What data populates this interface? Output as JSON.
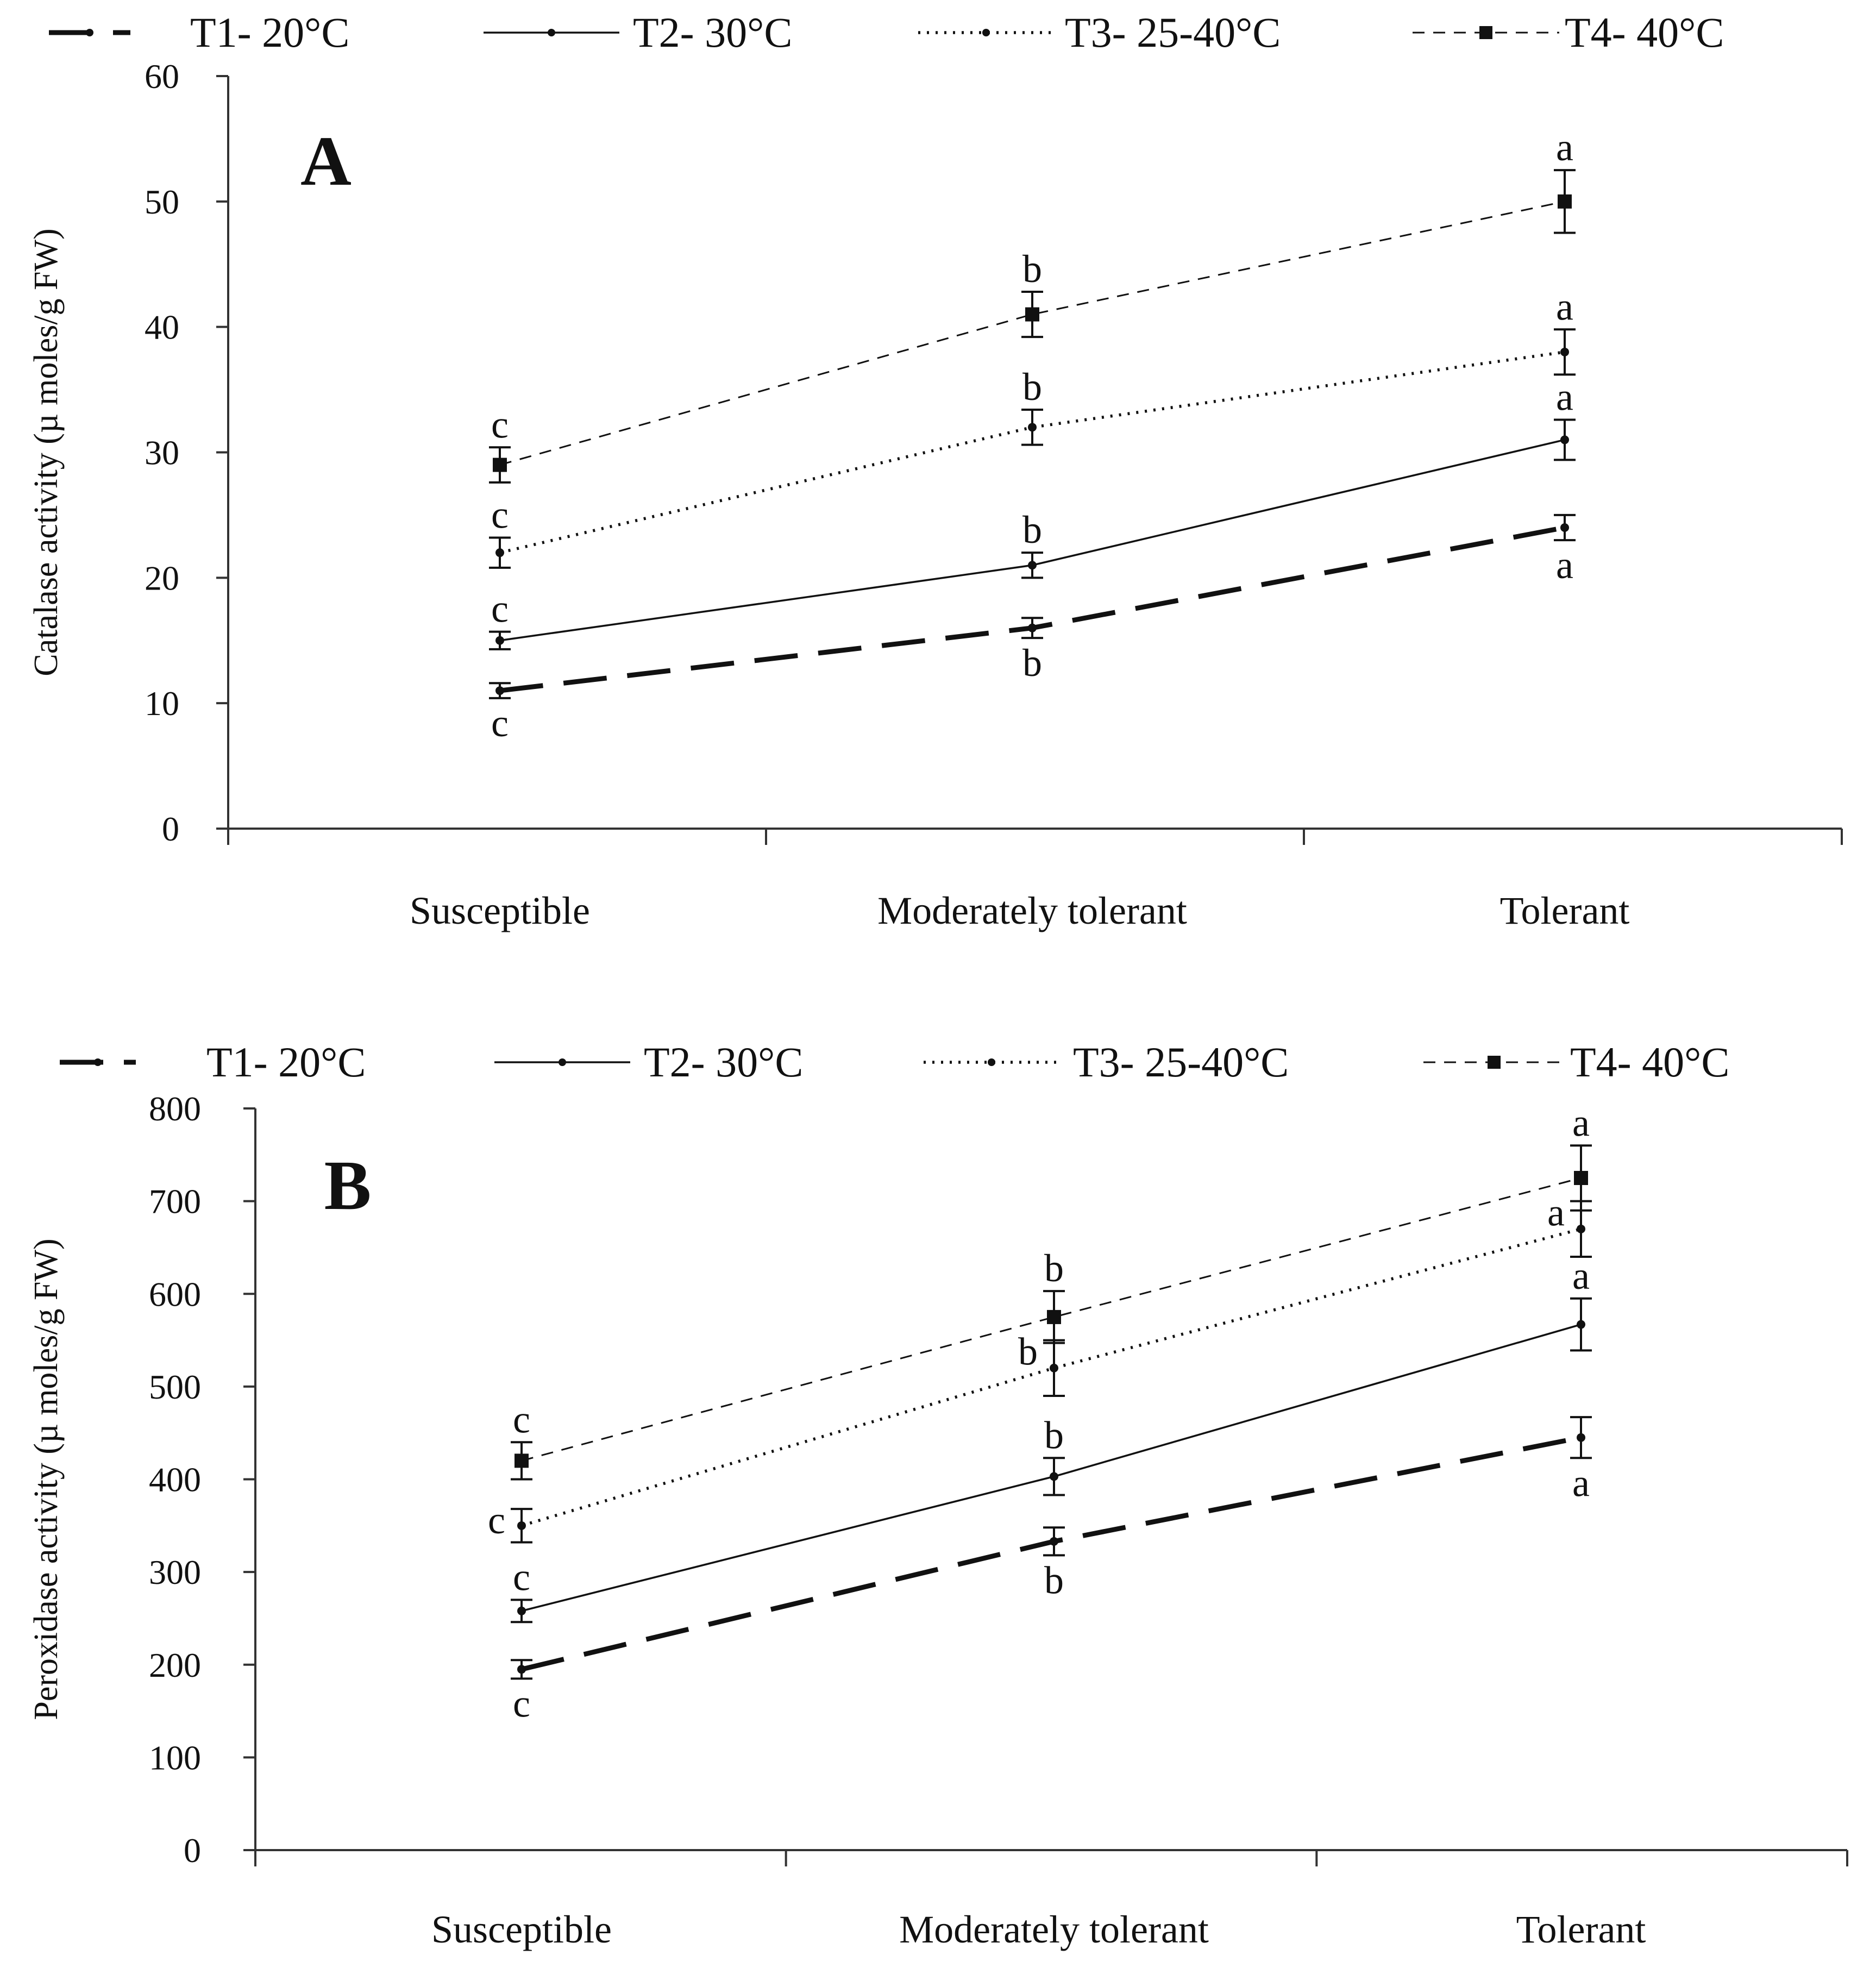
{
  "chart_data": [
    {
      "panel": "A",
      "type": "line",
      "ylabel": "Catalase activity (µ moles/g FW)",
      "xlabel": "",
      "categories": [
        "Susceptible",
        "Moderately tolerant",
        "Tolerant"
      ],
      "ylim": [
        0,
        60
      ],
      "yticks": [
        0,
        10,
        20,
        30,
        40,
        50,
        60
      ],
      "yticks_text": [
        "0",
        "10",
        "20",
        "30",
        "40",
        "50",
        "60"
      ],
      "legend_position": "top",
      "series": [
        {
          "name": "T1- 20°C",
          "style": "long-dash-bold",
          "marker": "dot",
          "values": [
            11,
            16,
            24
          ],
          "errors": [
            0.6,
            0.8,
            1.0
          ],
          "letters": [
            "c",
            "b",
            "a"
          ],
          "letter_pos": [
            "below",
            "below",
            "below"
          ]
        },
        {
          "name": "T2- 30°C",
          "style": "solid",
          "marker": "dot",
          "values": [
            15,
            21,
            31
          ],
          "errors": [
            0.7,
            1.0,
            1.6
          ],
          "letters": [
            "c",
            "b",
            "a"
          ],
          "letter_pos": [
            "above",
            "above",
            "above"
          ]
        },
        {
          "name": "T3- 25-40°C",
          "style": "dotted",
          "marker": "dot",
          "values": [
            22,
            32,
            38
          ],
          "errors": [
            1.2,
            1.4,
            1.8
          ],
          "letters": [
            "c",
            "b",
            "a"
          ],
          "letter_pos": [
            "above",
            "above",
            "above"
          ]
        },
        {
          "name": "T4- 40°C",
          "style": "dashed",
          "marker": "square",
          "values": [
            29,
            41,
            50
          ],
          "errors": [
            1.4,
            1.8,
            2.5
          ],
          "letters": [
            "c",
            "b",
            "a"
          ],
          "letter_pos": [
            "above",
            "above",
            "above"
          ]
        }
      ]
    },
    {
      "panel": "B",
      "type": "line",
      "ylabel": "Peroxidase activity (µ moles/g FW)",
      "xlabel": "",
      "categories": [
        "Susceptible",
        "Moderately tolerant",
        "Tolerant"
      ],
      "ylim": [
        0,
        800
      ],
      "yticks": [
        0,
        100,
        200,
        300,
        400,
        500,
        600,
        700,
        800
      ],
      "yticks_text": [
        "0",
        "100",
        "200",
        "300",
        "400",
        "500",
        "600",
        "700",
        "800"
      ],
      "legend_position": "top",
      "series": [
        {
          "name": "T1- 20°C",
          "style": "long-dash-bold",
          "marker": "dot",
          "values": [
            195,
            333,
            445
          ],
          "errors": [
            10,
            15,
            22
          ],
          "letters": [
            "c",
            "b",
            "a"
          ],
          "letter_pos": [
            "below",
            "below",
            "below"
          ]
        },
        {
          "name": "T2- 30°C",
          "style": "solid",
          "marker": "dot",
          "values": [
            258,
            403,
            567
          ],
          "errors": [
            12,
            20,
            28
          ],
          "letters": [
            "c",
            "b",
            "a"
          ],
          "letter_pos": [
            "above",
            "above",
            "above"
          ]
        },
        {
          "name": "T3- 25-40°C",
          "style": "dotted",
          "marker": "dot",
          "values": [
            350,
            520,
            670
          ],
          "errors": [
            18,
            30,
            30
          ],
          "letters": [
            "c",
            "b",
            "a"
          ],
          "letter_pos": [
            "left",
            "left",
            "left"
          ]
        },
        {
          "name": "T4- 40°C",
          "style": "dashed",
          "marker": "square",
          "values": [
            420,
            575,
            725
          ],
          "errors": [
            20,
            28,
            35
          ],
          "letters": [
            "c",
            "b",
            "a"
          ],
          "letter_pos": [
            "above",
            "above",
            "above"
          ]
        }
      ]
    }
  ]
}
